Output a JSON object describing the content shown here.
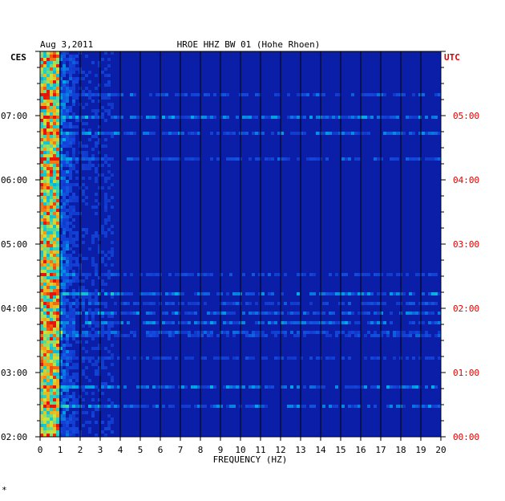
{
  "chart_data": {
    "type": "heatmap",
    "date": "Aug 3,2011",
    "station": "HROE HHZ BW 01 (Hohe Rhoen)",
    "xlabel": "FREQUENCY (HZ)",
    "xlim": [
      0,
      20
    ],
    "x_ticks": [
      "0",
      "1",
      "2",
      "3",
      "4",
      "5",
      "6",
      "7",
      "8",
      "9",
      "10",
      "11",
      "12",
      "13",
      "14",
      "15",
      "16",
      "17",
      "18",
      "19",
      "20"
    ],
    "left_axis_label": "CES",
    "right_axis_label": "UTC",
    "left_ticks": [
      "07:00",
      "06:00",
      "05:00",
      "04:00",
      "03:00",
      "02:00"
    ],
    "right_ticks": [
      "05:00",
      "04:00",
      "03:00",
      "02:00",
      "01:00",
      "00:00"
    ],
    "grid": true,
    "colors": {
      "background": "#0a1ea8",
      "grid": "#000000",
      "utc": "#e00000"
    },
    "footnote": "*"
  }
}
